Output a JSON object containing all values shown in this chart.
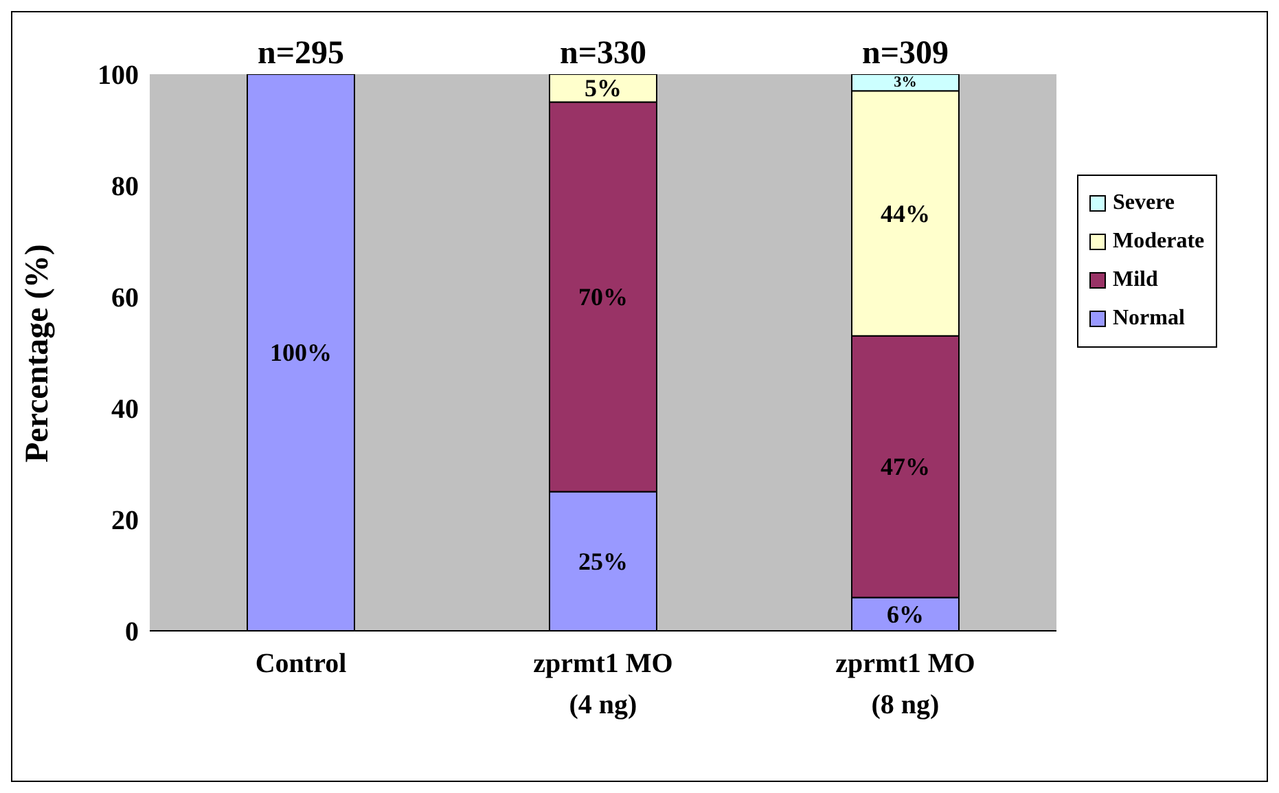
{
  "chart_data": {
    "type": "bar",
    "stacked": true,
    "ylabel": "Percentage (%)",
    "categories": [
      "Control",
      "zprmt1 MO (4 ng)",
      "zprmt1 MO (8 ng)"
    ],
    "series": [
      {
        "name": "Normal",
        "color": "#9999ff",
        "values": [
          100,
          25,
          6
        ],
        "value_labels": [
          "100%",
          "25%",
          "6%"
        ]
      },
      {
        "name": "Mild",
        "color": "#993366",
        "values": [
          0,
          70,
          47
        ],
        "value_labels": [
          null,
          "70%",
          "47%"
        ]
      },
      {
        "name": "Moderate",
        "color": "#ffffcc",
        "values": [
          0,
          5,
          44
        ],
        "value_labels": [
          null,
          "5%",
          "44%"
        ]
      },
      {
        "name": "Severe",
        "color": "#ccffff",
        "values": [
          0,
          0,
          3
        ],
        "value_labels": [
          null,
          null,
          "3%"
        ]
      }
    ],
    "ylim": [
      0,
      100
    ],
    "yticks": [
      0,
      20,
      40,
      60,
      80,
      100
    ],
    "legend": "right",
    "annotations": [
      {
        "text": "n=295",
        "x": "Control",
        "y": 100
      },
      {
        "text": "n=330",
        "x": "zprmt1 MO (4 ng)",
        "y": 100
      },
      {
        "text": "n=309",
        "x": "zprmt1 MO (8 ng)",
        "y": 100
      }
    ]
  }
}
